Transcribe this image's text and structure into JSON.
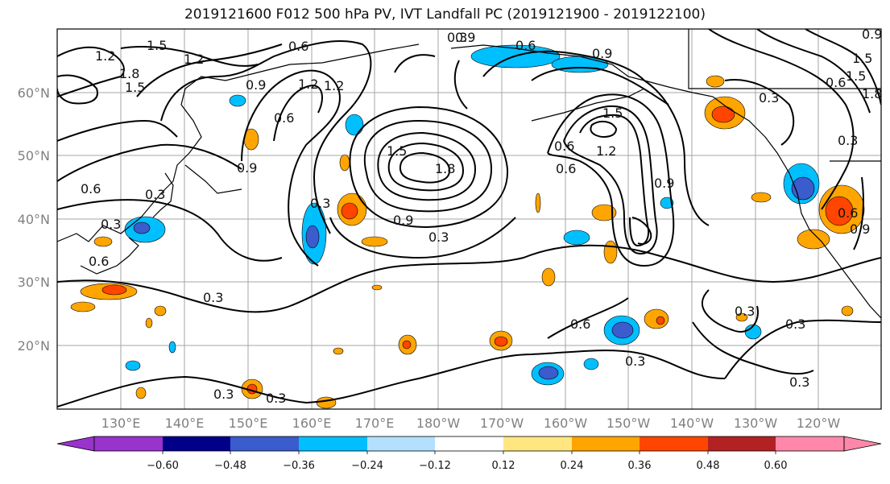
{
  "title": "2019121600 F012 500 hPa PV, IVT Landfall PC (2019121900 - 2019122100)",
  "map": {
    "lat_labels": [
      "60°N",
      "50°N",
      "40°N",
      "30°N",
      "20°N"
    ],
    "lon_labels": [
      "130°E",
      "140°E",
      "150°E",
      "160°E",
      "170°E",
      "180°W",
      "170°W",
      "160°W",
      "150°W",
      "140°W",
      "130°W",
      "120°W"
    ],
    "contour_labels": [
      "1.2",
      "1.5",
      "0.6",
      "1.2",
      "1.8",
      "1.5",
      "0.9",
      "0.6",
      "0.9",
      "0.3",
      "0.3",
      "0.3",
      "0.3",
      "0.6",
      "0.9",
      "0.9",
      "1.2",
      "0.6",
      "0.3",
      "0.3",
      "0.6",
      "0.3",
      "0.9",
      "0.9",
      "0.3",
      "0.3",
      "1.5",
      "0.6",
      "1.8",
      "1.5",
      "0.6",
      "0.3",
      "0.3",
      "0.3",
      "1.2",
      "0.6",
      "1.5",
      "0.3",
      "0.6",
      "0.9",
      "1.8",
      "1.2",
      "1.5",
      "0.6",
      "0.9",
      "0.3"
    ],
    "colors": {
      "gridline": "#a6a6a6",
      "contour": "#000000"
    }
  },
  "colorbar": {
    "tick_labels": [
      "−0.60",
      "−0.48",
      "−0.36",
      "−0.24",
      "−0.12",
      "0.12",
      "0.24",
      "0.36",
      "0.48",
      "0.60"
    ],
    "bins": [
      "#9933cc",
      "#000088",
      "#3a5ccc",
      "#00bfff",
      "#b3e0ff",
      "#ffffff",
      "#ffe680",
      "#ffa500",
      "#ff4500",
      "#b22222",
      "#ff88aa"
    ]
  }
}
